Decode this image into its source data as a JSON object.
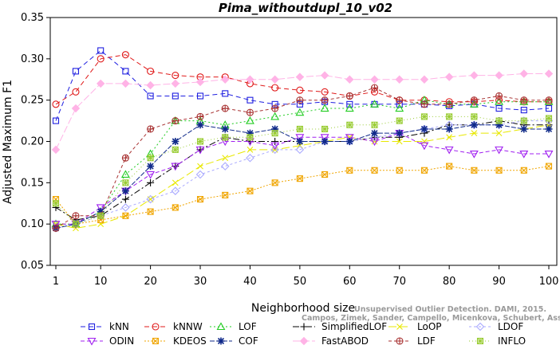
{
  "chart_data": {
    "type": "line",
    "title": "Pima_withoutdupl_10_v02",
    "xlabel": "Neighborhood size",
    "ylabel": "Adjusted Maximum F1",
    "xlim": [
      1,
      100
    ],
    "ylim": [
      0.05,
      0.35
    ],
    "x_ticks": [
      "1",
      "10",
      "20",
      "30",
      "40",
      "50",
      "60",
      "70",
      "80",
      "90",
      "100"
    ],
    "y_ticks": [
      "0.05",
      "0.10",
      "0.15",
      "0.20",
      "0.25",
      "0.30",
      "0.35"
    ],
    "grid": false,
    "legend_position": "bottom",
    "x": [
      1,
      5,
      10,
      15,
      20,
      25,
      30,
      35,
      40,
      45,
      50,
      55,
      60,
      65,
      70,
      75,
      80,
      85,
      90,
      95,
      100
    ],
    "series": [
      {
        "name": "kNN",
        "color": "#1f1fe0",
        "marker": "square",
        "dash": "6,4",
        "values": [
          0.225,
          0.285,
          0.31,
          0.285,
          0.255,
          0.255,
          0.255,
          0.258,
          0.25,
          0.245,
          0.245,
          0.248,
          0.245,
          0.245,
          0.245,
          0.245,
          0.243,
          0.245,
          0.24,
          0.238,
          0.24
        ]
      },
      {
        "name": "kNNW",
        "color": "#e01a1a",
        "marker": "circle",
        "dash": "6,4",
        "values": [
          0.245,
          0.26,
          0.3,
          0.305,
          0.285,
          0.28,
          0.278,
          0.278,
          0.27,
          0.265,
          0.262,
          0.26,
          0.255,
          0.26,
          0.25,
          0.25,
          0.248,
          0.248,
          0.25,
          0.248,
          0.248
        ]
      },
      {
        "name": "LOF",
        "color": "#22cc22",
        "marker": "triangle-up",
        "dash": "2,3",
        "values": [
          0.1,
          0.1,
          0.115,
          0.16,
          0.185,
          0.225,
          0.225,
          0.22,
          0.225,
          0.23,
          0.235,
          0.24,
          0.24,
          0.245,
          0.24,
          0.25,
          0.245,
          0.245,
          0.248,
          0.248,
          0.248
        ]
      },
      {
        "name": "SimplifiedLOF",
        "color": "#000000",
        "marker": "plus",
        "dash": "8,3,2,3",
        "values": [
          0.12,
          0.105,
          0.11,
          0.13,
          0.15,
          0.17,
          0.19,
          0.205,
          0.2,
          0.2,
          0.2,
          0.2,
          0.2,
          0.205,
          0.205,
          0.21,
          0.22,
          0.22,
          0.225,
          0.22,
          0.22
        ]
      },
      {
        "name": "LoOP",
        "color": "#e8e800",
        "marker": "cross",
        "dash": "10,4",
        "values": [
          0.1,
          0.095,
          0.1,
          0.11,
          0.13,
          0.15,
          0.17,
          0.18,
          0.19,
          0.19,
          0.195,
          0.2,
          0.205,
          0.2,
          0.2,
          0.2,
          0.205,
          0.21,
          0.21,
          0.215,
          0.22
        ]
      },
      {
        "name": "LDOF",
        "color": "#aaaaff",
        "marker": "diamond",
        "dash": "3,3",
        "values": [
          0.095,
          0.1,
          0.11,
          0.12,
          0.13,
          0.14,
          0.16,
          0.17,
          0.18,
          0.19,
          0.19,
          0.2,
          0.2,
          0.205,
          0.21,
          0.215,
          0.22,
          0.22,
          0.22,
          0.225,
          0.225
        ]
      },
      {
        "name": "ODIN",
        "color": "#a020f0",
        "marker": "triangle-down",
        "dash": "5,3",
        "values": [
          0.1,
          0.1,
          0.12,
          0.14,
          0.16,
          0.17,
          0.19,
          0.2,
          0.2,
          0.195,
          0.205,
          0.205,
          0.205,
          0.2,
          0.21,
          0.195,
          0.19,
          0.185,
          0.19,
          0.185,
          0.185
        ]
      },
      {
        "name": "KDEOS",
        "color": "#f0a500",
        "marker": "square-x",
        "dash": "2,2",
        "values": [
          0.13,
          0.1,
          0.105,
          0.11,
          0.115,
          0.12,
          0.13,
          0.135,
          0.14,
          0.15,
          0.155,
          0.16,
          0.165,
          0.165,
          0.165,
          0.165,
          0.17,
          0.165,
          0.165,
          0.165,
          0.17
        ]
      },
      {
        "name": "COF",
        "color": "#102a8a",
        "marker": "asterisk",
        "dash": "6,2",
        "values": [
          0.095,
          0.1,
          0.115,
          0.14,
          0.17,
          0.2,
          0.22,
          0.215,
          0.21,
          0.215,
          0.2,
          0.2,
          0.2,
          0.21,
          0.21,
          0.215,
          0.215,
          0.22,
          0.22,
          0.215,
          0.215
        ]
      },
      {
        "name": "FastABOD",
        "color": "#ffb3e6",
        "marker": "diamond-filled",
        "dash": "9,3",
        "values": [
          0.19,
          0.24,
          0.27,
          0.27,
          0.268,
          0.27,
          0.272,
          0.275,
          0.275,
          0.275,
          0.278,
          0.28,
          0.275,
          0.275,
          0.275,
          0.275,
          0.278,
          0.28,
          0.28,
          0.282,
          0.282
        ]
      },
      {
        "name": "LDF",
        "color": "#a83232",
        "marker": "circle-plus",
        "dash": "4,3",
        "values": [
          0.095,
          0.11,
          0.11,
          0.18,
          0.215,
          0.225,
          0.23,
          0.24,
          0.235,
          0.24,
          0.25,
          0.25,
          0.255,
          0.265,
          0.25,
          0.245,
          0.245,
          0.25,
          0.255,
          0.25,
          0.25
        ]
      },
      {
        "name": "INFLO",
        "color": "#99cc33",
        "marker": "square-star",
        "dash": "1,3",
        "values": [
          0.125,
          0.1,
          0.11,
          0.15,
          0.18,
          0.19,
          0.2,
          0.205,
          0.205,
          0.21,
          0.215,
          0.215,
          0.22,
          0.22,
          0.225,
          0.23,
          0.23,
          0.23,
          0.225,
          0.225,
          0.228
        ]
      }
    ]
  },
  "watermark": {
    "line1": "Unsupervised Outlier Detection. DAMI, 2015.",
    "line2": "Campos, Zimek, Sander, Campello, Micenkova, Schubert, Assent, Houle"
  }
}
